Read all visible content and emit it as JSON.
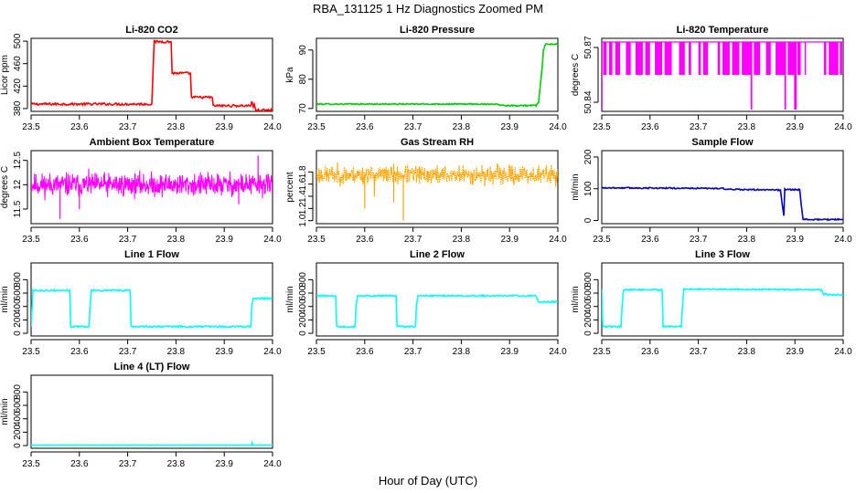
{
  "figure": {
    "title": "RBA_131125  1 Hz Diagnostics Zoomed PM",
    "xlabel": "Hour of Day (UTC)"
  },
  "colors": {
    "red": "#ff0000",
    "green": "#00cc00",
    "magenta": "#ff00ff",
    "orange": "#ffa500",
    "blue": "#0000cc",
    "cyan": "#00ffff"
  },
  "chart_data": [
    {
      "type": "line",
      "title": "Li-820 CO2",
      "ylabel": "Licor ppm",
      "color": "#ff0000",
      "noise": 2,
      "xlim": [
        23.5,
        24.0
      ],
      "ylim": [
        375,
        505
      ],
      "xticks": [
        "23.5",
        "23.6",
        "23.7",
        "23.8",
        "23.9",
        "24.0"
      ],
      "yticks": [
        {
          "v": 380,
          "label": "380"
        },
        {
          "v": 420,
          "label": "420"
        },
        {
          "v": 460,
          "label": "460"
        },
        {
          "v": 500,
          "label": "500"
        }
      ],
      "series": [
        {
          "name": "CO2",
          "x": [
            23.5,
            23.75,
            23.752,
            23.755,
            23.79,
            23.792,
            23.83,
            23.832,
            23.875,
            23.877,
            23.955,
            23.957,
            23.96,
            23.962,
            23.965,
            23.967,
            24.0
          ],
          "y": [
            388,
            388,
            435,
            499,
            499,
            443,
            443,
            400,
            400,
            385,
            385,
            393,
            383,
            388,
            378,
            377,
            377
          ]
        }
      ]
    },
    {
      "type": "line",
      "title": "Li-820 Pressure",
      "ylabel": "kPa",
      "color": "#00cc00",
      "noise": 0.2,
      "xlim": [
        23.5,
        24.0
      ],
      "ylim": [
        69,
        94
      ],
      "xticks": [
        "23.5",
        "23.6",
        "23.7",
        "23.8",
        "23.9",
        "24.0"
      ],
      "yticks": [
        {
          "v": 70,
          "label": "70"
        },
        {
          "v": 80,
          "label": "80"
        },
        {
          "v": 90,
          "label": "90"
        }
      ],
      "series": [
        {
          "name": "Pressure",
          "x": [
            23.5,
            23.875,
            23.877,
            23.9,
            23.955,
            23.96,
            23.963,
            23.965,
            23.968,
            23.97,
            23.975,
            24.0
          ],
          "y": [
            71.5,
            71.5,
            71.2,
            71.0,
            71.0,
            72,
            77,
            80,
            85,
            90,
            92,
            92
          ]
        }
      ]
    },
    {
      "type": "spikes",
      "title": "Li-820 Temperature",
      "ylabel": "degrees C",
      "color": "#ff00ff",
      "xlim": [
        23.5,
        24.0
      ],
      "ylim": [
        50.835,
        50.875
      ],
      "xticks": [
        "23.5",
        "23.6",
        "23.7",
        "23.8",
        "23.9",
        "24.0"
      ],
      "yticks": [
        {
          "v": 50.84,
          "label": "50.84"
        },
        {
          "v": 50.87,
          "label": "50.87"
        }
      ],
      "baseline": 50.855,
      "top": 50.873,
      "bottom": 50.836,
      "upbands": [
        [
          23.503,
          23.51
        ],
        [
          23.515,
          23.522
        ],
        [
          23.528,
          23.538
        ],
        [
          23.55,
          23.56
        ],
        [
          23.57,
          23.585
        ],
        [
          23.59,
          23.6
        ],
        [
          23.61,
          23.625
        ],
        [
          23.63,
          23.645
        ],
        [
          23.66,
          23.672
        ],
        [
          23.68,
          23.685
        ],
        [
          23.7,
          23.705
        ],
        [
          23.71,
          23.72
        ],
        [
          23.74,
          23.745
        ],
        [
          23.75,
          23.765
        ],
        [
          23.77,
          23.785
        ],
        [
          23.79,
          23.81
        ],
        [
          23.815,
          23.828
        ],
        [
          23.84,
          23.85
        ],
        [
          23.86,
          23.88
        ],
        [
          23.885,
          23.9
        ],
        [
          23.905,
          23.912
        ],
        [
          23.92,
          23.922
        ],
        [
          23.96,
          23.965
        ],
        [
          23.97,
          23.99
        ],
        [
          23.993,
          23.998
        ]
      ],
      "downs": [
        23.5,
        23.81,
        23.88,
        23.9,
        23.902
      ]
    },
    {
      "type": "noise",
      "title": "Ambient Box Temperature",
      "ylabel": "degrees C",
      "color": "#ff00ff",
      "seed": 11,
      "xlim": [
        23.5,
        24.0
      ],
      "ylim": [
        11.2,
        12.7
      ],
      "xticks": [
        "23.5",
        "23.6",
        "23.7",
        "23.8",
        "23.9",
        "24.0"
      ],
      "yticks": [
        {
          "v": 11.5,
          "label": "11.5"
        },
        {
          "v": 12.0,
          "label": "12"
        },
        {
          "v": 12.5,
          "label": "12.5"
        }
      ],
      "center": 12.0,
      "amp": 0.35,
      "spikes": [
        [
          23.56,
          11.3
        ],
        [
          23.6,
          11.5
        ],
        [
          23.93,
          11.6
        ],
        [
          23.97,
          12.6
        ]
      ]
    },
    {
      "type": "noise",
      "title": "Gas Stream RH",
      "ylabel": "percent",
      "color": "#ffa500",
      "seed": 23,
      "dotted": true,
      "xlim": [
        23.5,
        24.0
      ],
      "ylim": [
        0.95,
        2.15
      ],
      "xticks": [
        "23.5",
        "23.6",
        "23.7",
        "23.8",
        "23.9",
        "24.0"
      ],
      "yticks": [
        {
          "v": 1.0,
          "label": "1.0"
        },
        {
          "v": 1.2,
          "label": "1.2"
        },
        {
          "v": 1.4,
          "label": "1.4"
        },
        {
          "v": 1.6,
          "label": "1.6"
        },
        {
          "v": 1.8,
          "label": "1.8"
        }
      ],
      "center": 1.75,
      "amp": 0.22,
      "spikes": [
        [
          23.6,
          1.2
        ],
        [
          23.68,
          1.0
        ],
        [
          23.66,
          1.3
        ],
        [
          23.62,
          1.4
        ]
      ]
    },
    {
      "type": "line",
      "title": "Sample Flow",
      "ylabel": "ml/min",
      "color": "#0000cc",
      "noise": 2,
      "xlim": [
        23.5,
        24.0
      ],
      "ylim": [
        -10,
        220
      ],
      "xticks": [
        "23.5",
        "23.6",
        "23.7",
        "23.8",
        "23.9",
        "24.0"
      ],
      "yticks": [
        {
          "v": 0,
          "label": "0"
        },
        {
          "v": 100,
          "label": "100"
        },
        {
          "v": 200,
          "label": "200"
        }
      ],
      "series": [
        {
          "name": "Flow",
          "x": [
            23.5,
            23.75,
            23.76,
            23.87,
            23.873,
            23.877,
            23.879,
            23.91,
            23.913,
            23.917,
            24.0
          ],
          "y": [
            103,
            101,
            98,
            96,
            60,
            15,
            98,
            97,
            50,
            3,
            3
          ]
        }
      ]
    },
    {
      "type": "line",
      "title": "Line 1 Flow",
      "ylabel": "ml/min",
      "color": "#00ffff",
      "noise": 12,
      "xlim": [
        23.5,
        24.0
      ],
      "ylim": [
        -40,
        1050
      ],
      "xticks": [
        "23.5",
        "23.6",
        "23.7",
        "23.8",
        "23.9",
        "24.0"
      ],
      "yticks": [
        {
          "v": 0,
          "label": "0"
        },
        {
          "v": 200,
          "label": "200"
        },
        {
          "v": 400,
          "label": "400"
        },
        {
          "v": 600,
          "label": "600"
        },
        {
          "v": 800,
          "label": "800"
        }
      ],
      "series": [
        {
          "name": "Line1",
          "x": [
            23.5,
            23.502,
            23.504,
            23.58,
            23.582,
            23.62,
            23.622,
            23.625,
            23.705,
            23.707,
            23.955,
            23.957,
            23.96,
            24.0
          ],
          "y": [
            100,
            400,
            640,
            640,
            100,
            100,
            400,
            640,
            640,
            100,
            100,
            400,
            520,
            520
          ]
        }
      ]
    },
    {
      "type": "line",
      "title": "Line 2 Flow",
      "ylabel": "ml/min",
      "color": "#00ffff",
      "noise": 10,
      "xlim": [
        23.5,
        24.0
      ],
      "ylim": [
        -40,
        1050
      ],
      "xticks": [
        "23.5",
        "23.6",
        "23.7",
        "23.8",
        "23.9",
        "24.0"
      ],
      "yticks": [
        {
          "v": 0,
          "label": "0"
        },
        {
          "v": 200,
          "label": "200"
        },
        {
          "v": 400,
          "label": "400"
        },
        {
          "v": 600,
          "label": "600"
        },
        {
          "v": 800,
          "label": "800"
        }
      ],
      "series": [
        {
          "name": "Line2",
          "x": [
            23.5,
            23.54,
            23.542,
            23.58,
            23.582,
            23.585,
            23.665,
            23.667,
            23.705,
            23.707,
            23.71,
            23.955,
            23.96,
            24.0
          ],
          "y": [
            560,
            560,
            100,
            100,
            400,
            560,
            560,
            100,
            100,
            400,
            560,
            560,
            470,
            470
          ]
        }
      ]
    },
    {
      "type": "line",
      "title": "Line 3 Flow",
      "ylabel": "ml/min",
      "color": "#00ffff",
      "noise": 10,
      "xlim": [
        23.5,
        24.0
      ],
      "ylim": [
        -40,
        1050
      ],
      "xticks": [
        "23.5",
        "23.6",
        "23.7",
        "23.8",
        "23.9",
        "24.0"
      ],
      "yticks": [
        {
          "v": 0,
          "label": "0"
        },
        {
          "v": 200,
          "label": "200"
        },
        {
          "v": 400,
          "label": "400"
        },
        {
          "v": 600,
          "label": "600"
        },
        {
          "v": 800,
          "label": "800"
        }
      ],
      "series": [
        {
          "name": "Line3",
          "x": [
            23.5,
            23.502,
            23.504,
            23.54,
            23.542,
            23.545,
            23.625,
            23.627,
            23.665,
            23.667,
            23.67,
            23.955,
            23.96,
            24.0
          ],
          "y": [
            660,
            100,
            100,
            100,
            400,
            650,
            650,
            100,
            100,
            400,
            660,
            650,
            580,
            570
          ]
        }
      ]
    },
    {
      "type": "line",
      "title": "Line 4 (LT) Flow",
      "ylabel": "ml/min",
      "color": "#00ffff",
      "noise": 1,
      "xlim": [
        23.5,
        24.0
      ],
      "ylim": [
        -40,
        1050
      ],
      "xticks": [
        "23.5",
        "23.6",
        "23.7",
        "23.8",
        "23.9",
        "24.0"
      ],
      "yticks": [
        {
          "v": 0,
          "label": "0"
        },
        {
          "v": 200,
          "label": "200"
        },
        {
          "v": 400,
          "label": "400"
        },
        {
          "v": 600,
          "label": "600"
        },
        {
          "v": 800,
          "label": "800"
        }
      ],
      "series": [
        {
          "name": "Line4",
          "x": [
            23.5,
            23.957,
            23.958,
            23.96,
            23.962,
            24.0
          ],
          "y": [
            5,
            5,
            40,
            5,
            5,
            5
          ]
        }
      ]
    }
  ]
}
